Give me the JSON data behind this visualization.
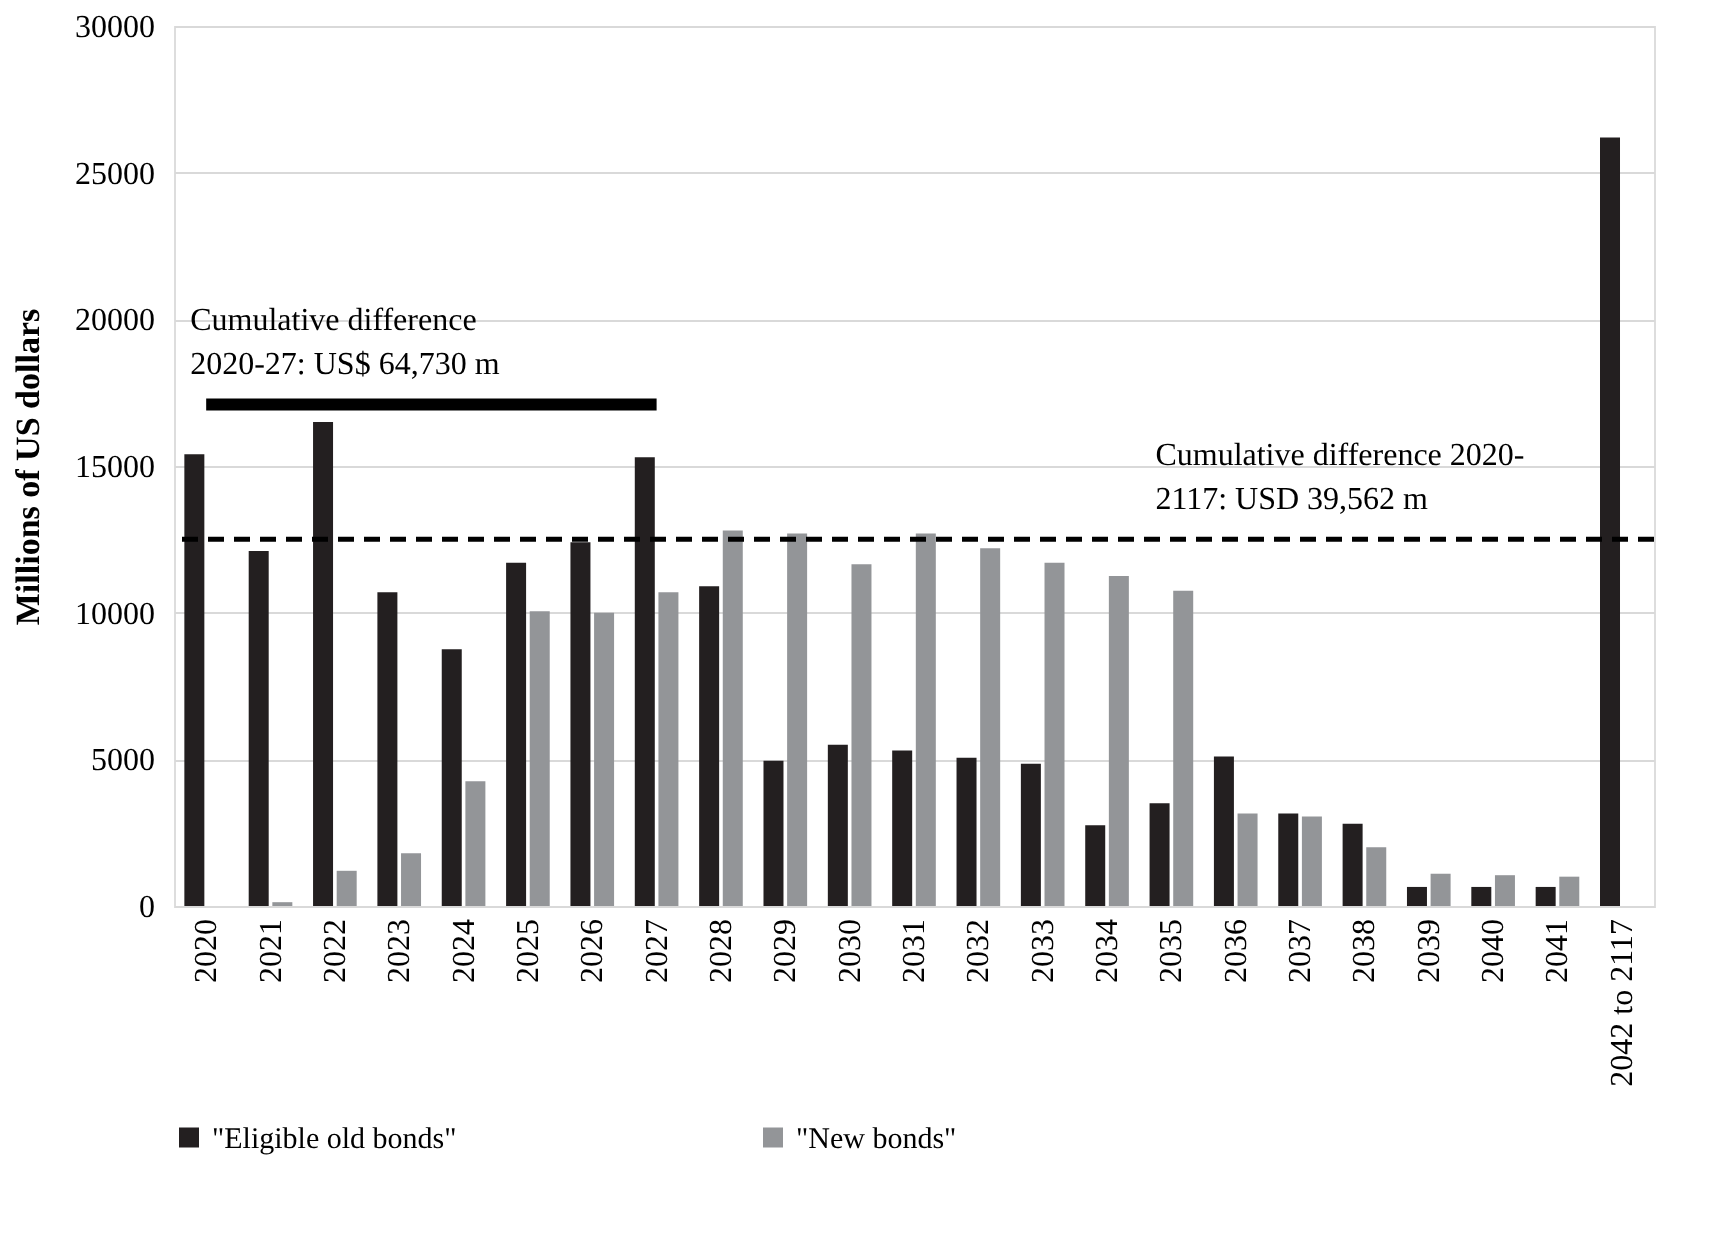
{
  "chart_data": {
    "type": "bar",
    "ylabel": "Millions of US dollars",
    "categories": [
      "2020",
      "2021",
      "2022",
      "2023",
      "2024",
      "2025",
      "2026",
      "2027",
      "2028",
      "2029",
      "2030",
      "2031",
      "2032",
      "2033",
      "2034",
      "2035",
      "2036",
      "2037",
      "2038",
      "2039",
      "2040",
      "2041",
      "2042 to 2117"
    ],
    "series": [
      {
        "name": "\"Eligible old bonds\"",
        "color": "#231f20",
        "values": [
          15400,
          12100,
          16500,
          10700,
          8750,
          11700,
          12400,
          15300,
          10900,
          4950,
          5500,
          5300,
          5050,
          4850,
          2750,
          3500,
          5100,
          3150,
          2800,
          650,
          650,
          650,
          26200
        ]
      },
      {
        "name": "\"New bonds\"",
        "color": "#939598",
        "values": [
          0,
          130,
          1200,
          1800,
          4250,
          10050,
          10000,
          10700,
          12800,
          12700,
          11650,
          12700,
          12200,
          11700,
          11250,
          10750,
          3150,
          3050,
          2000,
          1100,
          1050,
          1000,
          0
        ]
      },
      {
        "type": "line",
        "color": "#000000",
        "values": [
          17100,
          17100,
          17100,
          17100,
          17100,
          17100,
          17100,
          17100,
          null,
          null,
          null,
          null,
          null,
          null,
          null,
          null,
          null,
          null,
          null,
          null,
          null,
          null,
          null
        ]
      }
    ],
    "ref_lines": [
      {
        "axis": "y",
        "value": 12500,
        "line_style": "dashed",
        "color": "#000000"
      }
    ],
    "annotations": [
      {
        "text": "Cumulative difference\n2020-27: US$ 64,730 m",
        "x": "2020",
        "y": 17100
      },
      {
        "text": "Cumulative difference 2020-\n2117: USD 39,562 m",
        "x": "2035",
        "y": 12500
      }
    ],
    "ylim": [
      0,
      30000
    ],
    "yticks": [
      0,
      5000,
      10000,
      15000,
      20000,
      25000,
      30000
    ],
    "grid": "y",
    "legend": "bottom"
  }
}
